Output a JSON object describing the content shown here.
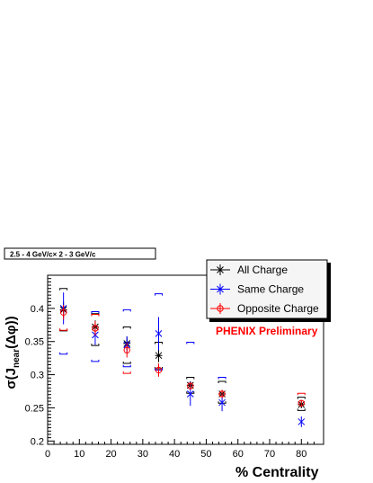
{
  "chart_data": {
    "type": "scatter",
    "panel_label": "2.5 - 4 GeV/c× 2 - 3 GeV/c",
    "xlabel": "% Centrality",
    "ylabel": "σ(J",
    "ylabel_sub": "near",
    "ylabel_tail": "(Δφ))",
    "xlim": [
      0,
      87
    ],
    "ylim": [
      0.195,
      0.45
    ],
    "xticks": [
      "0",
      "10",
      "20",
      "30",
      "40",
      "50",
      "60",
      "70",
      "80"
    ],
    "yticks": [
      "0.2",
      "0.25",
      "0.3",
      "0.35",
      "0.4"
    ],
    "annotation": "PHENIX Preliminary",
    "annotation_color": "#ff0000",
    "series": [
      {
        "name": "All Charge",
        "color": "#000000",
        "marker": "star",
        "points": [
          {
            "x": 5,
            "y": 0.398,
            "err": 0.012,
            "sys_lo": 0.02,
            "sys_hi": 0.02
          },
          {
            "x": 15,
            "y": 0.372,
            "err": 0.01,
            "sys_lo": 0.018,
            "sys_hi": 0.01
          },
          {
            "x": 25,
            "y": 0.347,
            "err": 0.01,
            "sys_lo": 0.02,
            "sys_hi": 0.015
          },
          {
            "x": 35,
            "y": 0.329,
            "err": 0.01,
            "sys_lo": 0.01,
            "sys_hi": 0.01
          },
          {
            "x": 45,
            "y": 0.284,
            "err": 0.006,
            "sys_lo": 0.006,
            "sys_hi": 0.006
          },
          {
            "x": 55,
            "y": 0.271,
            "err": 0.006,
            "sys_lo": 0.008,
            "sys_hi": 0.013
          },
          {
            "x": 80,
            "y": 0.255,
            "err": 0.005,
            "sys_lo": 0.004,
            "sys_hi": 0.006
          }
        ]
      },
      {
        "name": "Same Charge",
        "color": "#0000ff",
        "marker": "cross",
        "points": [
          {
            "x": 5,
            "y": 0.4,
            "err": 0.024,
            "sys_lo": 0.045,
            "sys_hi": 0.0
          },
          {
            "x": 15,
            "y": 0.36,
            "err": 0.015,
            "sys_lo": 0.025,
            "sys_hi": 0.02
          },
          {
            "x": 25,
            "y": 0.345,
            "err": 0.013,
            "sys_lo": 0.02,
            "sys_hi": 0.04
          },
          {
            "x": 35,
            "y": 0.362,
            "err": 0.025,
            "sys_lo": 0.03,
            "sys_hi": 0.035
          },
          {
            "x": 45,
            "y": 0.271,
            "err": 0.018,
            "sys_lo": 0.0,
            "sys_hi": 0.06
          },
          {
            "x": 55,
            "y": 0.258,
            "err": 0.013,
            "sys_lo": 0.0,
            "sys_hi": 0.025
          },
          {
            "x": 80,
            "y": 0.229,
            "err": 0.008,
            "sys_lo": 0.0,
            "sys_hi": 0.0
          }
        ]
      },
      {
        "name": "Opposite Charge",
        "color": "#ff0000",
        "marker": "circle",
        "points": [
          {
            "x": 5,
            "y": 0.394,
            "err": 0.011,
            "sys_lo": 0.016,
            "sys_hi": 0.0
          },
          {
            "x": 15,
            "y": 0.37,
            "err": 0.011,
            "sys_lo": 0.0,
            "sys_hi": 0.01
          },
          {
            "x": 25,
            "y": 0.337,
            "err": 0.011,
            "sys_lo": 0.024,
            "sys_hi": 0.0
          },
          {
            "x": 35,
            "y": 0.307,
            "err": 0.01,
            "sys_lo": 0.0,
            "sys_hi": 0.0
          },
          {
            "x": 45,
            "y": 0.283,
            "err": 0.005,
            "sys_lo": 0.0,
            "sys_hi": 0.0
          },
          {
            "x": 55,
            "y": 0.271,
            "err": 0.006,
            "sys_lo": 0.0,
            "sys_hi": 0.0
          },
          {
            "x": 80,
            "y": 0.257,
            "err": 0.005,
            "sys_lo": 0.0,
            "sys_hi": 0.01
          }
        ]
      }
    ],
    "legend_position": "top-right"
  }
}
